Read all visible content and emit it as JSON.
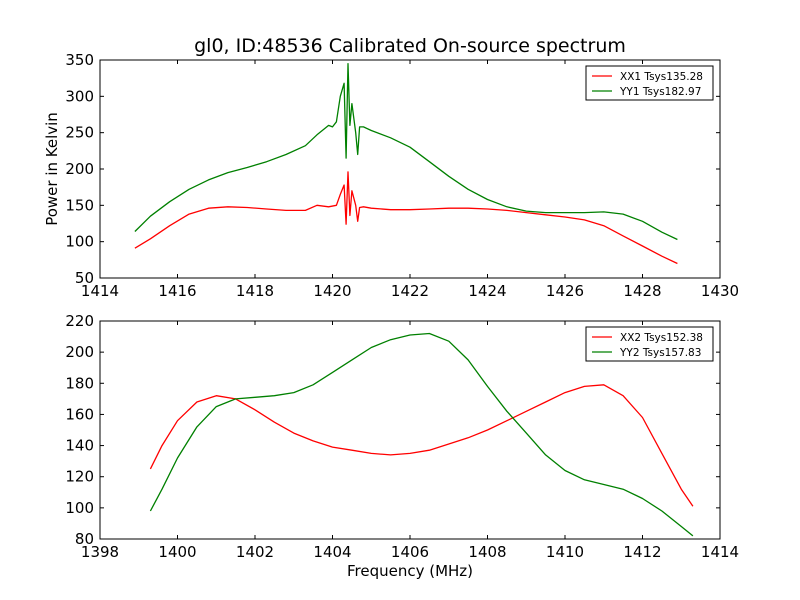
{
  "figure": {
    "title": "gl0, ID:48536 Calibrated On-source spectrum",
    "xlabel": "Frequency (MHz)",
    "ylabel": "Power in Kelvin"
  },
  "chart_data": [
    {
      "type": "line",
      "title": "gl0, ID:48536 Calibrated On-source spectrum",
      "xlabel": "",
      "ylabel": "Power in Kelvin",
      "xlim": [
        1414,
        1430
      ],
      "ylim": [
        50,
        350
      ],
      "xticks": [
        1414,
        1416,
        1418,
        1420,
        1422,
        1424,
        1426,
        1428,
        1430
      ],
      "yticks": [
        50,
        100,
        150,
        200,
        250,
        300,
        350
      ],
      "legend": "top-right",
      "grid": false,
      "series": [
        {
          "name": "XX1 Tsys135.28",
          "color": "#ff0000",
          "x": [
            1414.9,
            1415.3,
            1415.8,
            1416.3,
            1416.8,
            1417.3,
            1417.8,
            1418.3,
            1418.8,
            1419.3,
            1419.6,
            1419.9,
            1420.1,
            1420.2,
            1420.3,
            1420.35,
            1420.4,
            1420.45,
            1420.5,
            1420.6,
            1420.65,
            1420.7,
            1420.8,
            1421.0,
            1421.5,
            1422.0,
            1422.5,
            1423.0,
            1423.5,
            1424.0,
            1424.5,
            1425.0,
            1425.5,
            1426.0,
            1426.5,
            1427.0,
            1427.5,
            1428.0,
            1428.5,
            1428.9
          ],
          "y": [
            91,
            104,
            122,
            138,
            146,
            148,
            147,
            145,
            143,
            143,
            150,
            148,
            150,
            165,
            178,
            124,
            196,
            136,
            170,
            150,
            128,
            147,
            148,
            146,
            144,
            144,
            145,
            146,
            146,
            145,
            143,
            140,
            137,
            134,
            130,
            122,
            108,
            94,
            80,
            70
          ]
        },
        {
          "name": "YY1 Tsys182.97",
          "color": "#008000",
          "x": [
            1414.9,
            1415.3,
            1415.8,
            1416.3,
            1416.8,
            1417.3,
            1417.8,
            1418.3,
            1418.8,
            1419.3,
            1419.6,
            1419.9,
            1420.0,
            1420.1,
            1420.2,
            1420.3,
            1420.35,
            1420.4,
            1420.45,
            1420.5,
            1420.6,
            1420.65,
            1420.7,
            1420.8,
            1421.0,
            1421.5,
            1422.0,
            1422.5,
            1423.0,
            1423.5,
            1424.0,
            1424.5,
            1425.0,
            1425.5,
            1426.0,
            1426.5,
            1427.0,
            1427.5,
            1428.0,
            1428.5,
            1428.9
          ],
          "y": [
            114,
            135,
            155,
            172,
            185,
            195,
            202,
            210,
            220,
            232,
            247,
            260,
            258,
            265,
            300,
            318,
            215,
            345,
            260,
            290,
            250,
            220,
            258,
            258,
            253,
            243,
            230,
            210,
            190,
            172,
            158,
            148,
            142,
            140,
            140,
            140,
            141,
            138,
            128,
            113,
            103
          ]
        }
      ]
    },
    {
      "type": "line",
      "title": "",
      "xlabel": "Frequency (MHz)",
      "ylabel": "",
      "xlim": [
        1398,
        1414
      ],
      "ylim": [
        80,
        220
      ],
      "xticks": [
        1398,
        1400,
        1402,
        1404,
        1406,
        1408,
        1410,
        1412,
        1414
      ],
      "yticks": [
        80,
        100,
        120,
        140,
        160,
        180,
        200,
        220
      ],
      "legend": "top-right",
      "grid": false,
      "series": [
        {
          "name": "XX2 Tsys152.38",
          "color": "#ff0000",
          "x": [
            1399.3,
            1399.6,
            1400.0,
            1400.5,
            1401.0,
            1401.5,
            1402.0,
            1402.5,
            1403.0,
            1403.5,
            1404.0,
            1404.5,
            1405.0,
            1405.5,
            1406.0,
            1406.5,
            1407.0,
            1407.5,
            1408.0,
            1408.5,
            1409.0,
            1409.5,
            1410.0,
            1410.5,
            1411.0,
            1411.5,
            1412.0,
            1412.5,
            1413.0,
            1413.3
          ],
          "y": [
            125,
            140,
            156,
            168,
            172,
            170,
            163,
            155,
            148,
            143,
            139,
            137,
            135,
            134,
            135,
            137,
            141,
            145,
            150,
            156,
            162,
            168,
            174,
            178,
            179,
            172,
            158,
            135,
            112,
            101
          ]
        },
        {
          "name": "YY2 Tsys157.83",
          "color": "#008000",
          "x": [
            1399.3,
            1399.6,
            1400.0,
            1400.5,
            1401.0,
            1401.5,
            1402.0,
            1402.5,
            1403.0,
            1403.5,
            1404.0,
            1404.5,
            1405.0,
            1405.5,
            1406.0,
            1406.5,
            1407.0,
            1407.5,
            1408.0,
            1408.5,
            1409.0,
            1409.5,
            1410.0,
            1410.5,
            1411.0,
            1411.5,
            1412.0,
            1412.5,
            1413.0,
            1413.3
          ],
          "y": [
            98,
            112,
            132,
            152,
            165,
            170,
            171,
            172,
            174,
            179,
            187,
            195,
            203,
            208,
            211,
            212,
            207,
            195,
            178,
            162,
            148,
            134,
            124,
            118,
            115,
            112,
            106,
            98,
            88,
            82
          ]
        }
      ]
    }
  ]
}
